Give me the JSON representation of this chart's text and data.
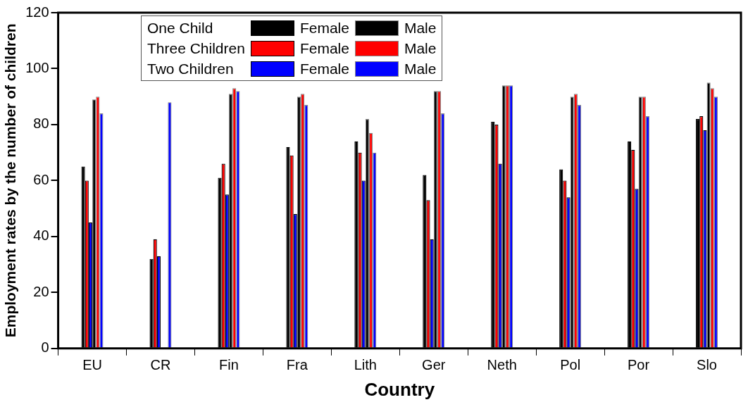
{
  "chart_data": {
    "type": "bar",
    "xlabel": "Country",
    "ylabel": "Employment rates by the number of children",
    "categories": [
      "EU",
      "CR",
      "Fin",
      "Fra",
      "Lith",
      "Ger",
      "Neth",
      "Pol",
      "Por",
      "Slo"
    ],
    "series": [
      {
        "name": "Female",
        "color": "#000000",
        "values": [
          65,
          32,
          61,
          72,
          74,
          62,
          81,
          64,
          74,
          82
        ]
      },
      {
        "name": "Female",
        "color": "#ff0000",
        "values": [
          60,
          39,
          66,
          69,
          70,
          53,
          80,
          60,
          71,
          83
        ]
      },
      {
        "name": "Female",
        "color": "#0000ff",
        "values": [
          45,
          33,
          55,
          48,
          60,
          39,
          66,
          54,
          57,
          78
        ]
      },
      {
        "name": "Male",
        "color": "#000000",
        "values": [
          89,
          null,
          91,
          90,
          82,
          92,
          94,
          90,
          90,
          95
        ]
      },
      {
        "name": "Male",
        "color": "#ff0000",
        "values": [
          90,
          null,
          93,
          91,
          77,
          92,
          94,
          91,
          90,
          93
        ]
      },
      {
        "name": "Male",
        "color": "#0000ff",
        "values": [
          84,
          88,
          92,
          87,
          70,
          84,
          94,
          87,
          83,
          90
        ]
      }
    ],
    "annotations": [
      "One Child",
      "Three Children",
      "Two Children"
    ],
    "ylim": [
      0,
      120
    ],
    "yticks": [
      0,
      20,
      40,
      60,
      80,
      100,
      120
    ],
    "legend": "top left",
    "grid": false
  }
}
